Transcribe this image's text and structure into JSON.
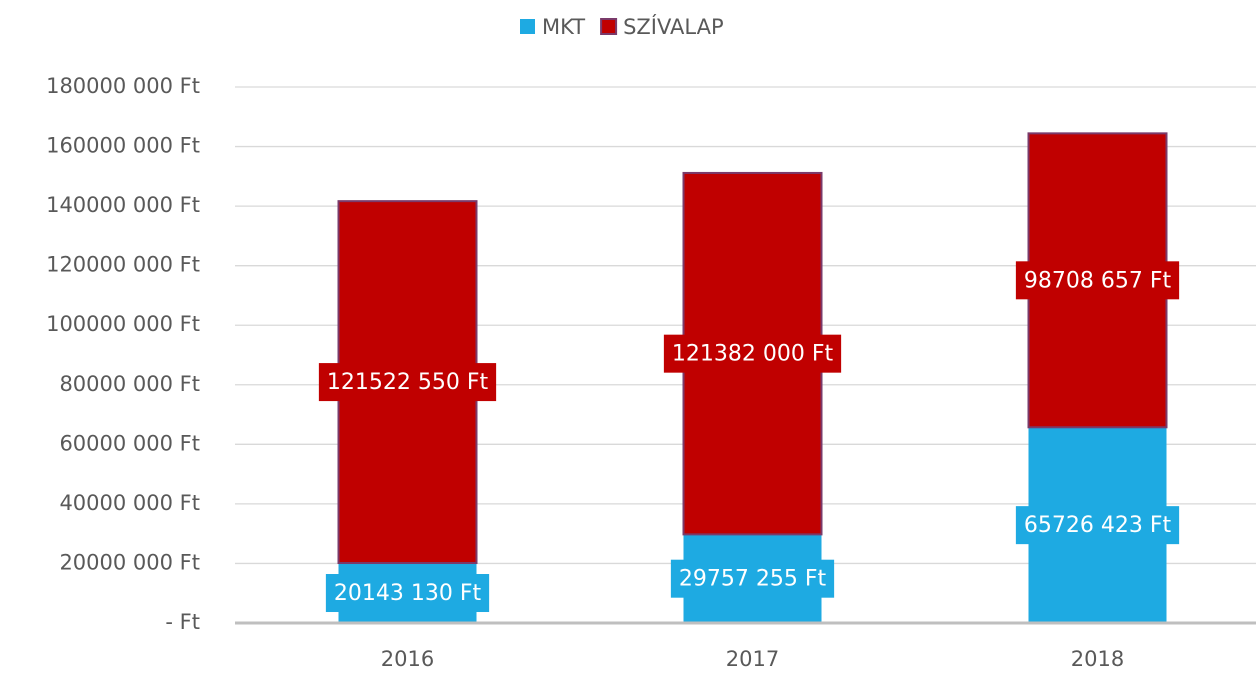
{
  "chart_data": {
    "type": "stacked_bar",
    "categories": [
      "2016",
      "2017",
      "2018"
    ],
    "series": [
      {
        "name": "MKT",
        "color": "#1eaae2",
        "values": [
          20143130,
          29757255,
          65726423
        ],
        "value_labels": [
          "20143 130 Ft",
          "29757 255 Ft",
          "65726 423 Ft"
        ]
      },
      {
        "name": "SZÍVALAP",
        "color": "#c00000",
        "edgecolor": "#7a3a6a",
        "values": [
          121522550,
          121382000,
          98708657
        ],
        "value_labels": [
          "121522 550 Ft",
          "121382 000 Ft",
          "98708 657 Ft"
        ]
      }
    ],
    "ylim": [
      0,
      180000000
    ],
    "yticks": [
      {
        "value": 0,
        "label": "-   Ft"
      },
      {
        "value": 20000000,
        "label": "20000 000 Ft"
      },
      {
        "value": 40000000,
        "label": "40000 000 Ft"
      },
      {
        "value": 60000000,
        "label": "60000 000 Ft"
      },
      {
        "value": 80000000,
        "label": "80000 000 Ft"
      },
      {
        "value": 100000000,
        "label": "100000 000 Ft"
      },
      {
        "value": 120000000,
        "label": "120000 000 Ft"
      },
      {
        "value": 140000000,
        "label": "140000 000 Ft"
      },
      {
        "value": 160000000,
        "label": "160000 000 Ft"
      },
      {
        "value": 180000000,
        "label": "180000 000 Ft"
      }
    ],
    "grid": true,
    "legend": "top"
  }
}
